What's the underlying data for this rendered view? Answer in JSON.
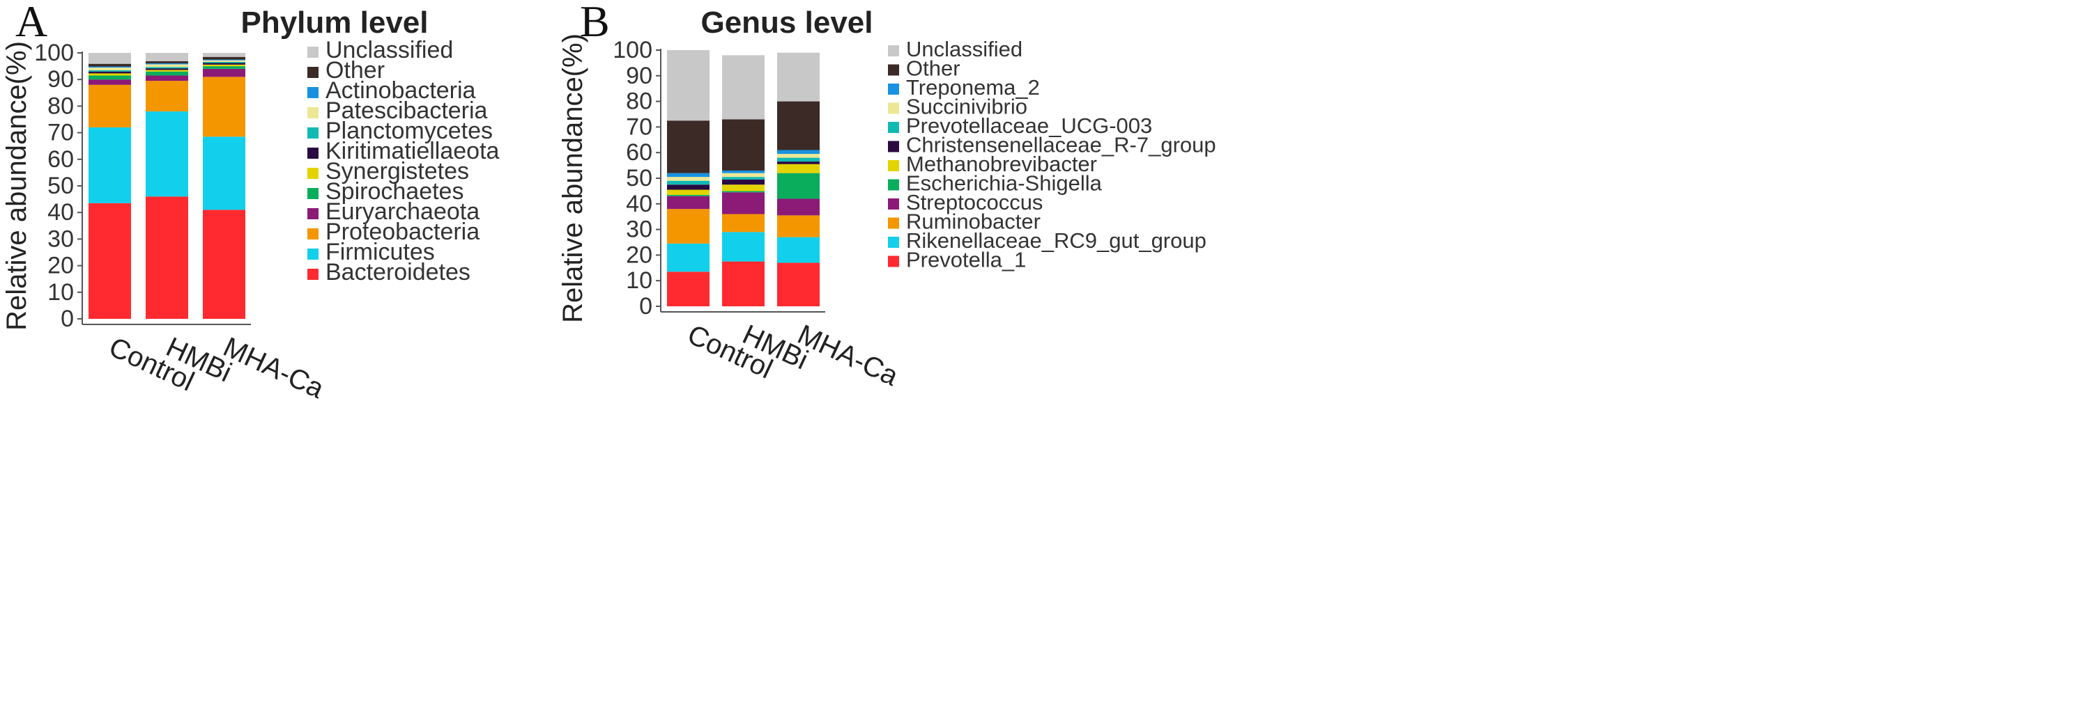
{
  "chart_data": [
    {
      "type": "bar",
      "stacked": true,
      "panel_label": "A",
      "title": "Phylum level",
      "xlabel": "",
      "ylabel": "Relative abundance(%)",
      "ylim": [
        0,
        100
      ],
      "yticks": [
        0,
        10,
        20,
        30,
        40,
        50,
        60,
        70,
        80,
        90,
        100
      ],
      "categories": [
        "Control",
        "HMBi",
        "MHA-Ca"
      ],
      "legend_position": "right",
      "series": [
        {
          "name": "Bacteroidetes",
          "color": "#ff2a2f",
          "values": [
            43.5,
            46.0,
            41.0
          ]
        },
        {
          "name": "Firmicutes",
          "color": "#12cfec",
          "values": [
            28.5,
            32.0,
            27.5
          ]
        },
        {
          "name": "Proteobacteria",
          "color": "#f49600",
          "values": [
            16.0,
            11.5,
            22.5
          ]
        },
        {
          "name": "Euryarchaeota",
          "color": "#8c1a77",
          "values": [
            2.0,
            2.0,
            3.0
          ]
        },
        {
          "name": "Spirochaetes",
          "color": "#0aad5c",
          "values": [
            1.5,
            1.5,
            1.0
          ]
        },
        {
          "name": "Synergistetes",
          "color": "#e3d400",
          "values": [
            0.8,
            0.6,
            0.6
          ]
        },
        {
          "name": "Kiritimatiellaeota",
          "color": "#2a0a40",
          "values": [
            0.7,
            0.6,
            0.6
          ]
        },
        {
          "name": "Planctomycetes",
          "color": "#11b9b3",
          "values": [
            0.5,
            0.5,
            0.4
          ]
        },
        {
          "name": "Patescibacteria",
          "color": "#ece795",
          "values": [
            1.0,
            1.0,
            0.6
          ]
        },
        {
          "name": "Actinobacteria",
          "color": "#1892e0",
          "values": [
            0.4,
            0.4,
            0.3
          ]
        },
        {
          "name": "Other",
          "color": "#3b2a26",
          "values": [
            1.0,
            0.8,
            1.0
          ]
        },
        {
          "name": "Unclassified",
          "color": "#c8c8c8",
          "values": [
            4.1,
            3.1,
            1.5
          ]
        }
      ]
    },
    {
      "type": "bar",
      "stacked": true,
      "panel_label": "B",
      "title": "Genus level",
      "xlabel": "",
      "ylabel": "Relative abundance(%)",
      "ylim": [
        0,
        100
      ],
      "yticks": [
        0,
        10,
        20,
        30,
        40,
        50,
        60,
        70,
        80,
        90,
        100
      ],
      "categories": [
        "Control",
        "HMBi",
        "MHA-Ca"
      ],
      "legend_position": "right",
      "series": [
        {
          "name": "Prevotella_1",
          "color": "#ff2a2f",
          "values": [
            13.5,
            17.5,
            17.0
          ]
        },
        {
          "name": "Rikenellaceae_RC9_gut_group",
          "color": "#12cfec",
          "values": [
            11.0,
            11.5,
            10.0
          ]
        },
        {
          "name": "Ruminobacter",
          "color": "#f49600",
          "values": [
            13.5,
            7.0,
            8.5
          ]
        },
        {
          "name": "Streptococcus",
          "color": "#8c1a77",
          "values": [
            5.0,
            8.5,
            6.5
          ]
        },
        {
          "name": "Escherichia-Shigella",
          "color": "#0aad5c",
          "values": [
            0.5,
            0.5,
            10.0
          ]
        },
        {
          "name": "Methanobrevibacter",
          "color": "#e3d400",
          "values": [
            2.0,
            2.5,
            3.5
          ]
        },
        {
          "name": "Christensenellaceae_R-7_group",
          "color": "#2a0a40",
          "values": [
            2.0,
            2.0,
            1.0
          ]
        },
        {
          "name": "Prevotellaceae_UCG-003",
          "color": "#11b9b3",
          "values": [
            1.5,
            1.0,
            1.5
          ]
        },
        {
          "name": "Succinivibrio",
          "color": "#ece795",
          "values": [
            1.5,
            1.5,
            1.5
          ]
        },
        {
          "name": "Treponema_2",
          "color": "#1892e0",
          "values": [
            1.5,
            1.0,
            1.5
          ]
        },
        {
          "name": "Other",
          "color": "#3b2a26",
          "values": [
            20.5,
            20.0,
            19.0
          ]
        },
        {
          "name": "Unclassified",
          "color": "#c8c8c8",
          "values": [
            27.5,
            25.0,
            19.0
          ]
        }
      ]
    }
  ]
}
